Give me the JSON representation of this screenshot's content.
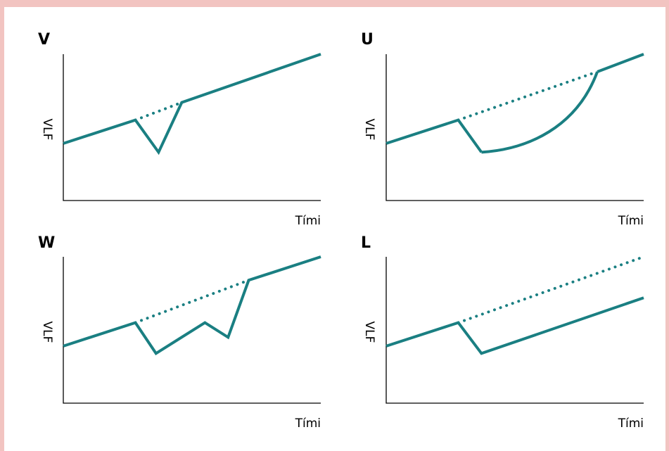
{
  "colors": {
    "background": "#f2c4c1",
    "panel": "#ffffff",
    "line": "#1a7f82",
    "axis": "#000000"
  },
  "chart_data": [
    {
      "type": "line",
      "title": "V",
      "xlabel": "Tími",
      "ylabel": "VLF",
      "series": [
        {
          "style": "solid",
          "x": [
            0,
            0.28,
            0.37,
            0.46,
            1.0
          ],
          "y": [
            0.39,
            0.55,
            0.33,
            0.67,
            1.0
          ]
        },
        {
          "style": "dotted",
          "x": [
            0.28,
            0.46
          ],
          "y": [
            0.55,
            0.67
          ]
        }
      ]
    },
    {
      "type": "line",
      "title": "U",
      "xlabel": "Tími",
      "ylabel": "VLF",
      "series": [
        {
          "style": "solid",
          "x": [
            0,
            0.28,
            0.37
          ],
          "y": [
            0.39,
            0.55,
            0.33
          ]
        },
        {
          "style": "solid-curve",
          "x": [
            0.37,
            0.55,
            0.74,
            0.82
          ],
          "y": [
            0.33,
            0.35,
            0.5,
            0.88
          ]
        },
        {
          "style": "solid",
          "x": [
            0.82,
            1.0
          ],
          "y": [
            0.88,
            1.0
          ]
        },
        {
          "style": "dotted",
          "x": [
            0.28,
            0.82
          ],
          "y": [
            0.55,
            0.88
          ]
        }
      ]
    },
    {
      "type": "line",
      "title": "W",
      "xlabel": "Tími",
      "ylabel": "VLF",
      "series": [
        {
          "style": "solid",
          "x": [
            0,
            0.28,
            0.36,
            0.55,
            0.64,
            0.72,
            1.0
          ],
          "y": [
            0.39,
            0.55,
            0.34,
            0.55,
            0.45,
            0.84,
            1.0
          ]
        },
        {
          "style": "dotted",
          "x": [
            0.28,
            0.72
          ],
          "y": [
            0.55,
            0.84
          ]
        }
      ]
    },
    {
      "type": "line",
      "title": "L",
      "xlabel": "Tími",
      "ylabel": "VLF",
      "series": [
        {
          "style": "solid",
          "x": [
            0,
            0.28,
            0.37,
            1.0
          ],
          "y": [
            0.39,
            0.55,
            0.34,
            0.72
          ]
        },
        {
          "style": "dotted",
          "x": [
            0.28,
            1.0
          ],
          "y": [
            0.55,
            1.0
          ]
        }
      ]
    }
  ]
}
